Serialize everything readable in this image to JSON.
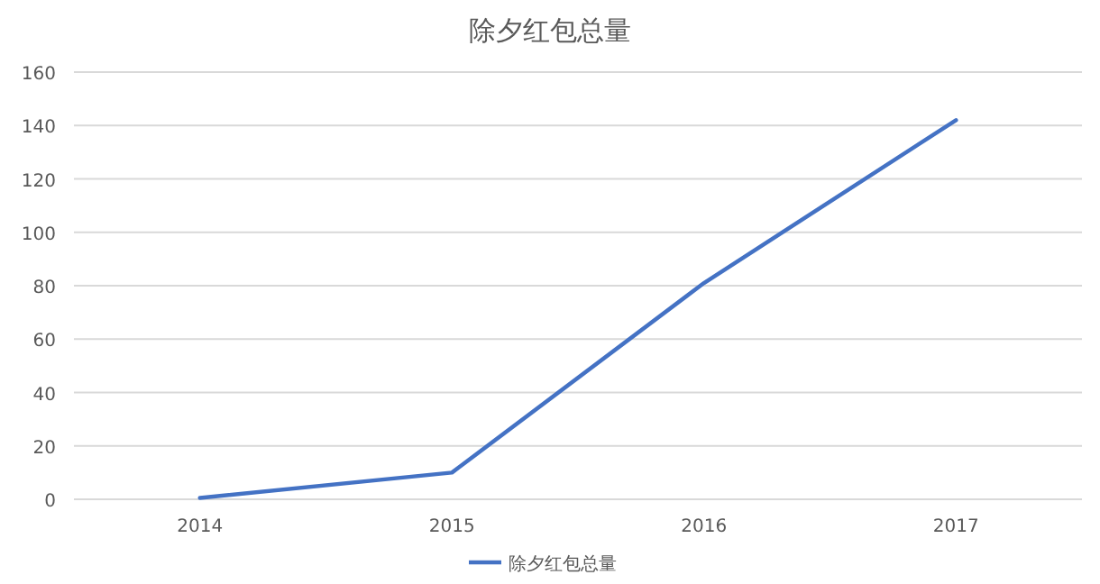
{
  "chart_data": {
    "type": "line",
    "title": "除夕红包总量",
    "categories": [
      "2014",
      "2015",
      "2016",
      "2017"
    ],
    "series": [
      {
        "name": "除夕红包总量",
        "color": "#4472c4",
        "values": [
          0.5,
          10,
          81,
          142
        ]
      }
    ],
    "ylim": [
      0,
      160
    ],
    "yticks": [
      0,
      20,
      40,
      60,
      80,
      100,
      120,
      140,
      160
    ],
    "grid": "y",
    "legend": "bottom",
    "marker": "none",
    "line_style": "solid"
  }
}
